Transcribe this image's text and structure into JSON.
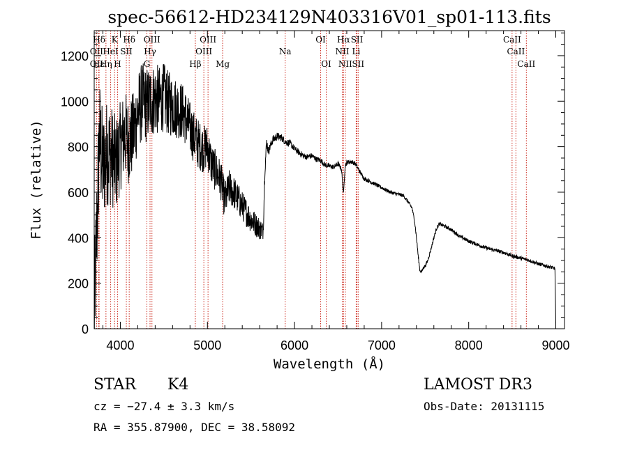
{
  "chart_data": {
    "type": "line",
    "title": "spec-56612-HD234129N403316V01_sp01-113.fits",
    "xlabel": "Wavelength (Å)",
    "ylabel": "Flux (relative)",
    "xlim": [
      3700,
      9100
    ],
    "ylim": [
      0,
      1310
    ],
    "xticks": [
      4000,
      5000,
      6000,
      7000,
      8000,
      9000
    ],
    "yticks": [
      0,
      200,
      400,
      600,
      800,
      1000,
      1200
    ],
    "grid": false,
    "series": [
      {
        "name": "spectrum",
        "color": "#000000",
        "anchors": [
          [
            3700,
            40
          ],
          [
            3720,
            300
          ],
          [
            3760,
            850
          ],
          [
            3800,
            700
          ],
          [
            3850,
            780
          ],
          [
            3900,
            760
          ],
          [
            3950,
            720
          ],
          [
            4000,
            800
          ],
          [
            4050,
            860
          ],
          [
            4100,
            820
          ],
          [
            4150,
            860
          ],
          [
            4200,
            950
          ],
          [
            4250,
            1000
          ],
          [
            4300,
            980
          ],
          [
            4350,
            1000
          ],
          [
            4400,
            1010
          ],
          [
            4450,
            1000
          ],
          [
            4500,
            1020
          ],
          [
            4550,
            990
          ],
          [
            4600,
            980
          ],
          [
            4650,
            970
          ],
          [
            4700,
            960
          ],
          [
            4750,
            930
          ],
          [
            4800,
            880
          ],
          [
            4850,
            840
          ],
          [
            4900,
            810
          ],
          [
            4950,
            790
          ],
          [
            5000,
            800
          ],
          [
            5050,
            720
          ],
          [
            5100,
            690
          ],
          [
            5150,
            660
          ],
          [
            5200,
            560
          ],
          [
            5250,
            620
          ],
          [
            5300,
            600
          ],
          [
            5350,
            570
          ],
          [
            5400,
            540
          ],
          [
            5450,
            510
          ],
          [
            5500,
            480
          ],
          [
            5550,
            460
          ],
          [
            5600,
            440
          ],
          [
            5640,
            430
          ],
          [
            5660,
            700
          ],
          [
            5680,
            820
          ],
          [
            5700,
            780
          ],
          [
            5750,
            830
          ],
          [
            5800,
            845
          ],
          [
            5850,
            840
          ],
          [
            5900,
            820
          ],
          [
            5950,
            815
          ],
          [
            6000,
            790
          ],
          [
            6050,
            775
          ],
          [
            6100,
            760
          ],
          [
            6150,
            755
          ],
          [
            6200,
            760
          ],
          [
            6250,
            745
          ],
          [
            6300,
            740
          ],
          [
            6350,
            720
          ],
          [
            6400,
            715
          ],
          [
            6450,
            710
          ],
          [
            6500,
            725
          ],
          [
            6540,
            700
          ],
          [
            6563,
            590
          ],
          [
            6580,
            715
          ],
          [
            6600,
            730
          ],
          [
            6650,
            735
          ],
          [
            6700,
            725
          ],
          [
            6750,
            690
          ],
          [
            6800,
            660
          ],
          [
            6850,
            650
          ],
          [
            6900,
            640
          ],
          [
            6950,
            630
          ],
          [
            7000,
            620
          ],
          [
            7050,
            610
          ],
          [
            7100,
            600
          ],
          [
            7150,
            595
          ],
          [
            7200,
            590
          ],
          [
            7250,
            585
          ],
          [
            7300,
            560
          ],
          [
            7350,
            530
          ],
          [
            7380,
            470
          ],
          [
            7400,
            400
          ],
          [
            7420,
            320
          ],
          [
            7440,
            255
          ],
          [
            7460,
            250
          ],
          [
            7480,
            270
          ],
          [
            7500,
            275
          ],
          [
            7530,
            300
          ],
          [
            7560,
            340
          ],
          [
            7600,
            400
          ],
          [
            7630,
            440
          ],
          [
            7660,
            460
          ],
          [
            7700,
            455
          ],
          [
            7750,
            445
          ],
          [
            7800,
            435
          ],
          [
            7850,
            420
          ],
          [
            7900,
            405
          ],
          [
            7950,
            395
          ],
          [
            8000,
            385
          ],
          [
            8100,
            370
          ],
          [
            8200,
            355
          ],
          [
            8300,
            345
          ],
          [
            8400,
            335
          ],
          [
            8500,
            320
          ],
          [
            8600,
            310
          ],
          [
            8700,
            300
          ],
          [
            8800,
            285
          ],
          [
            8900,
            275
          ],
          [
            8990,
            265
          ],
          [
            9000,
            20
          ]
        ],
        "noise": [
          [
            3700,
            280
          ],
          [
            4000,
            200
          ],
          [
            4500,
            150
          ],
          [
            5000,
            100
          ],
          [
            5600,
            50
          ],
          [
            5700,
            20
          ],
          [
            6000,
            14
          ],
          [
            7000,
            8
          ],
          [
            8000,
            8
          ],
          [
            9000,
            8
          ]
        ]
      }
    ],
    "lines": [
      {
        "label": "Hδ",
        "wave": 3757,
        "row": 1
      },
      {
        "label": "OII",
        "wave": 3727,
        "row": 2
      },
      {
        "label": "Hε",
        "wave": 3750,
        "row": 3
      },
      {
        "label": "OII",
        "wave": 3727,
        "row": 4
      },
      {
        "label": "Hη",
        "wave": 3835,
        "row": 4
      },
      {
        "label": "H",
        "wave": 3968,
        "row": 4
      },
      {
        "label": "K",
        "wave": 3934,
        "row": 1
      },
      {
        "label": "HeI",
        "wave": 3889,
        "row": 2
      },
      {
        "label": "SII",
        "wave": 4069,
        "row": 2
      },
      {
        "label": "Hδ",
        "wave": 4102,
        "row": 1
      },
      {
        "label": "OIII",
        "wave": 4363,
        "row": 1
      },
      {
        "label": "Hγ",
        "wave": 4341,
        "row": 2
      },
      {
        "label": "G",
        "wave": 4305,
        "row": 3
      },
      {
        "label": "Hβ",
        "wave": 4861,
        "row": 3
      },
      {
        "label": "OIII",
        "wave": 5007,
        "row": 1
      },
      {
        "label": "OIII",
        "wave": 4959,
        "row": 2
      },
      {
        "label": "Mg",
        "wave": 5175,
        "row": 3
      },
      {
        "label": "Na",
        "wave": 5893,
        "row": 2
      },
      {
        "label": "OI",
        "wave": 6300,
        "row": 1
      },
      {
        "label": "OI",
        "wave": 6364,
        "row": 3
      },
      {
        "label": "Hα",
        "wave": 6563,
        "row": 1
      },
      {
        "label": "NII",
        "wave": 6548,
        "row": 2
      },
      {
        "label": "NII",
        "wave": 6583,
        "row": 3
      },
      {
        "label": "SII",
        "wave": 6717,
        "row": 1
      },
      {
        "label": "Li",
        "wave": 6708,
        "row": 2
      },
      {
        "label": "SII",
        "wave": 6731,
        "row": 3
      },
      {
        "label": "CaII",
        "wave": 8498,
        "row": 1
      },
      {
        "label": "CaII",
        "wave": 8542,
        "row": 2
      },
      {
        "label": "CaII",
        "wave": 8662,
        "row": 3
      }
    ]
  },
  "info": {
    "object_class": "STAR",
    "subclass": "K4",
    "survey": "LAMOST DR3",
    "cz": "cz = −27.4 ± 3.3 km/s",
    "obs_date": "Obs-Date: 20131115",
    "coords": "RA = 355.87900, DEC =  38.58092"
  },
  "colors": {
    "spectrum": "#000000",
    "line_marker": "#cc2a1e",
    "text": "#000000",
    "background": "#ffffff"
  }
}
